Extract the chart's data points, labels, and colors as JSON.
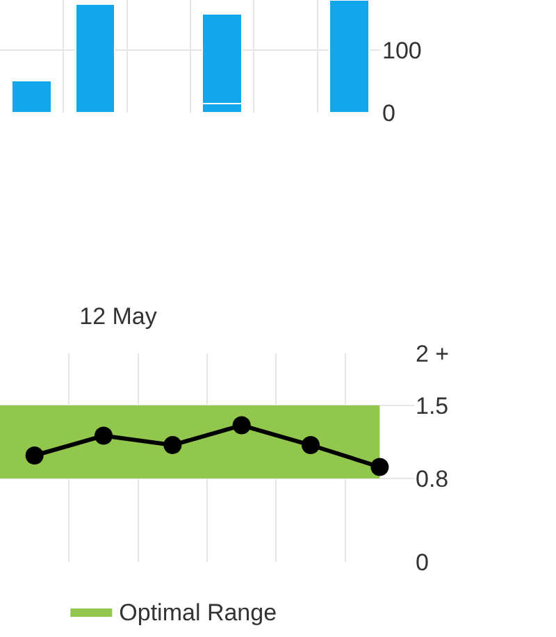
{
  "chart_data": [
    {
      "type": "bar",
      "stacked": true,
      "categories": [
        null,
        null,
        null,
        null,
        null,
        null
      ],
      "series": [
        {
          "color": "#12a7ea",
          "values": [
            51,
            173,
            null,
            15,
            null,
            180
          ]
        },
        {
          "color": "#12a7ea",
          "values": [
            null,
            null,
            null,
            143,
            null,
            null
          ]
        }
      ],
      "ylim": [
        0,
        180
      ],
      "yticks": [
        0,
        100
      ],
      "grid": true
    },
    {
      "type": "line",
      "title": "12 May",
      "categories": [
        null,
        null,
        null,
        null,
        null,
        null
      ],
      "series": [
        {
          "color": "#000000",
          "values": [
            1.02,
            1.21,
            1.12,
            1.31,
            1.12,
            0.91
          ]
        }
      ],
      "marker": "circle",
      "ylim": [
        0,
        2
      ],
      "yticks": [
        0,
        0.8,
        1.5,
        {
          "value": 2,
          "label": "2 +"
        }
      ],
      "bands": [
        {
          "axis": "y",
          "from": 0.8,
          "to": 1.5,
          "label": "Optimal Range",
          "color": "#8cc443"
        }
      ],
      "legend": "bottom",
      "grid": true
    }
  ]
}
